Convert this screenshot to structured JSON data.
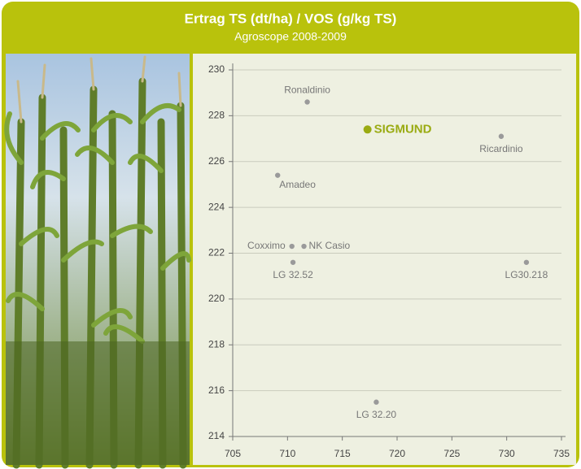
{
  "chart_data": {
    "type": "scatter",
    "title": "Ertrag TS (dt/ha) / VOS (g/kg TS)",
    "subtitle": "Agroscope 2008-2009",
    "series": [
      {
        "color": "#9a9a9a",
        "points": [
          {
            "label": "Ronaldinio",
            "x": 711.8,
            "y": 228.6
          },
          {
            "label": "Ricardinio",
            "x": 729.5,
            "y": 227.1
          },
          {
            "label": "Amadeo",
            "x": 709.1,
            "y": 225.4
          },
          {
            "label": "Coxximo",
            "x": 710.4,
            "y": 222.3
          },
          {
            "label": "NK Casio",
            "x": 711.5,
            "y": 222.3
          },
          {
            "label": "LG 32.52",
            "x": 710.5,
            "y": 221.6
          },
          {
            "label": "LG30.218",
            "x": 731.8,
            "y": 221.6
          },
          {
            "label": "LG 32.20",
            "x": 718.1,
            "y": 215.5
          }
        ]
      },
      {
        "color": "#9aab12",
        "points": [
          {
            "label": "SIGMUND",
            "x": 717.3,
            "y": 227.4
          }
        ]
      }
    ],
    "xlim": [
      705,
      735
    ],
    "xticks": [
      705,
      710,
      715,
      720,
      725,
      730,
      735
    ],
    "ylim": [
      214,
      230
    ],
    "yticks": [
      214,
      216,
      218,
      220,
      222,
      224,
      226,
      228,
      230
    ],
    "grid": true
  }
}
